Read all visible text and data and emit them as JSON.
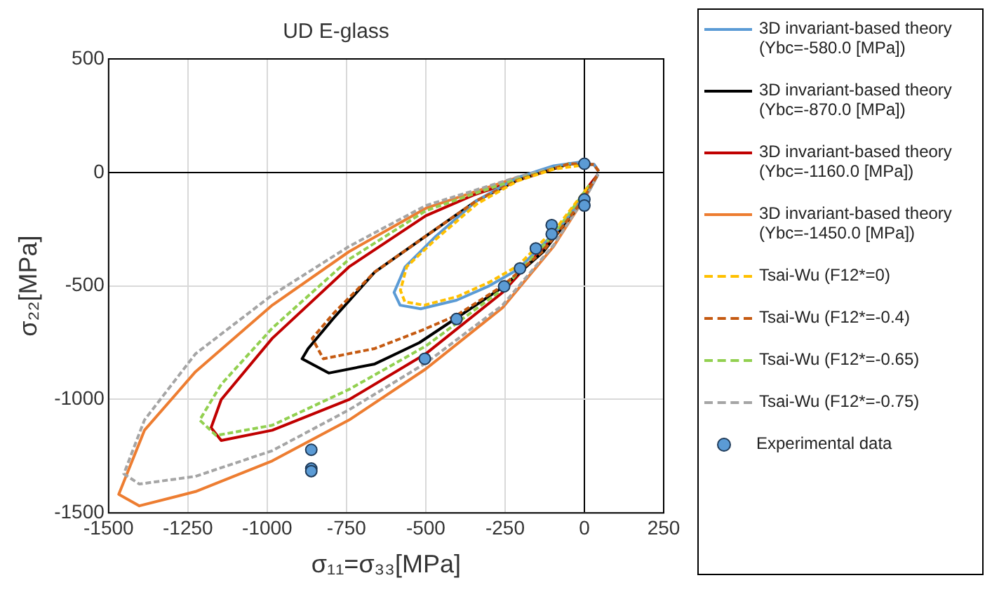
{
  "chart_data": {
    "type": "line",
    "title": "UD E-glass",
    "xlabel": "σ₁₁=σ₃₃[MPa]",
    "ylabel": "σ₂₂[MPa]",
    "xlim": [
      -1500,
      250
    ],
    "xticks": [
      -1500,
      -1250,
      -1000,
      -750,
      -500,
      -250,
      0,
      250
    ],
    "ylim": [
      -1500,
      500
    ],
    "yticks": [
      -1500,
      -1000,
      -500,
      0,
      500
    ],
    "grid": true,
    "legend": "right",
    "marker": "none",
    "series": [
      {
        "name": "3D invariant-based theory (Ybc=-580.0 [MPa])",
        "color": "#5b9bd5",
        "line_style": "solid",
        "x": [
          45,
          30,
          -16,
          -97,
          -210,
          -339,
          -468,
          -565,
          -600,
          -581,
          -516,
          -403,
          -300,
          -210,
          -81,
          16,
          43
        ],
        "values": [
          5,
          35,
          45,
          29,
          -22,
          -124,
          -281,
          -416,
          -529,
          -585,
          -601,
          -563,
          -500,
          -428,
          -248,
          -79,
          -8
        ]
      },
      {
        "name": "3D invariant-based theory (Ybc=-870.0 [MPa])",
        "color": "#000000",
        "line_style": "solid",
        "x": [
          45,
          30,
          -48,
          -210,
          -339,
          -500,
          -661,
          -790,
          -871,
          -890,
          -806,
          -661,
          -520,
          -403,
          -258,
          -129,
          -16,
          43
        ],
        "values": [
          5,
          35,
          38,
          -34,
          -124,
          -281,
          -439,
          -641,
          -776,
          -821,
          -884,
          -844,
          -750,
          -641,
          -506,
          -349,
          -146,
          -8
        ]
      },
      {
        "name": "3D invariant-based theory (Ybc=-1160.0 [MPa])",
        "color": "#c00000",
        "line_style": "solid",
        "x": [
          -48,
          -210,
          -350,
          -500,
          -742,
          -984,
          -1145,
          -1177,
          -1145,
          -984,
          -742,
          -500,
          -258,
          -97,
          16,
          43
        ],
        "values": [
          38,
          -34,
          -100,
          -191,
          -416,
          -731,
          -1001,
          -1125,
          -1181,
          -1136,
          -1001,
          -799,
          -529,
          -281,
          -56,
          -8
        ]
      },
      {
        "name": "3D invariant-based theory (Ybc=-1450.0 [MPa])",
        "color": "#ed7d31",
        "line_style": "solid",
        "x": [
          -48,
          -210,
          -500,
          -742,
          -984,
          -1226,
          -1387,
          -1468,
          -1403,
          -1226,
          -984,
          -742,
          -500,
          -258,
          -97,
          16,
          43
        ],
        "values": [
          38,
          -22,
          -158,
          -349,
          -585,
          -878,
          -1136,
          -1418,
          -1469,
          -1406,
          -1271,
          -1091,
          -866,
          -596,
          -326,
          -79,
          -8
        ]
      },
      {
        "name": "Tsai-Wu (F12*=0)",
        "color": "#ffc000",
        "line_style": "dashed",
        "x": [
          -16,
          -97,
          -210,
          -339,
          -468,
          -560,
          -580,
          -566,
          -505,
          -400,
          -300,
          -210,
          -81,
          10
        ],
        "values": [
          30,
          14,
          -37,
          -139,
          -294,
          -415,
          -520,
          -570,
          -585,
          -547,
          -484,
          -412,
          -232,
          -66
        ]
      },
      {
        "name": "Tsai-Wu (F12*=-0.4)",
        "color": "#c55a11",
        "line_style": "dashed",
        "x": [
          45,
          30,
          -48,
          -210,
          -339,
          -500,
          -661,
          -790,
          -858,
          -823,
          -661,
          -520,
          -403,
          -258,
          -129,
          -16,
          43
        ],
        "values": [
          5,
          35,
          38,
          -34,
          -124,
          -281,
          -439,
          -620,
          -731,
          -821,
          -776,
          -700,
          -630,
          -500,
          -345,
          -143,
          -8
        ]
      },
      {
        "name": "Tsai-Wu (F12*=-0.65)",
        "color": "#92d050",
        "line_style": "dashed",
        "x": [
          -48,
          -210,
          -350,
          -500,
          -742,
          -984,
          -1145,
          -1213,
          -1161,
          -984,
          -742,
          -500,
          -258,
          -97,
          16
        ],
        "values": [
          38,
          -30,
          -95,
          -169,
          -383,
          -686,
          -934,
          -1091,
          -1159,
          -1114,
          -956,
          -765,
          -515,
          -275,
          -56
        ]
      },
      {
        "name": "Tsai-Wu (F12*=-0.75)",
        "color": "#a5a5a5",
        "line_style": "dashed",
        "x": [
          45,
          30,
          -48,
          -210,
          -500,
          -742,
          -984,
          -1226,
          -1387,
          -1452,
          -1403,
          -1226,
          -984,
          -742,
          -500,
          -258,
          -97,
          16,
          43
        ],
        "values": [
          5,
          35,
          38,
          -20,
          -146,
          -326,
          -540,
          -799,
          -1091,
          -1328,
          -1373,
          -1339,
          -1226,
          -1046,
          -840,
          -585,
          -320,
          -79,
          -8
        ]
      },
      {
        "name": "Experimental data",
        "type": "scatter",
        "marker": "circle",
        "color": "#5b9bd5",
        "x": [
          0,
          0,
          0,
          -103,
          -103,
          -153,
          -203,
          -253,
          -403,
          -503,
          -861,
          -861,
          -861
        ],
        "values": [
          38,
          -119,
          -146,
          -232,
          -272,
          -335,
          -423,
          -502,
          -646,
          -821,
          -1222,
          -1305,
          -1316
        ]
      }
    ]
  }
}
